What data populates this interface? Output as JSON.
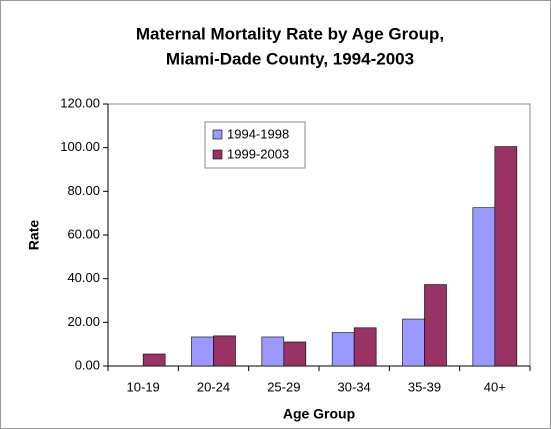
{
  "chart_data": {
    "type": "bar",
    "title": "Maternal Mortality Rate by Age Group,",
    "subtitle": "Miami-Dade County, 1994-2003",
    "x_label": "Age Group",
    "y_label": "Rate",
    "categories": [
      "10-19",
      "20-24",
      "25-29",
      "30-34",
      "35-39",
      "40+"
    ],
    "series": [
      {
        "name": "1994-1998",
        "color": "#9999ff",
        "values": [
          null,
          13.3,
          13.3,
          15.3,
          21.5,
          72.5
        ]
      },
      {
        "name": "1999-2003",
        "color": "#993366",
        "values": [
          5.5,
          13.8,
          11.0,
          17.5,
          37.3,
          100.5
        ]
      }
    ],
    "ylim": [
      0,
      120
    ],
    "yticks": [
      {
        "value": 0,
        "label": "0.00"
      },
      {
        "value": 20,
        "label": "20.00"
      },
      {
        "value": 40,
        "label": "40.00"
      },
      {
        "value": 60,
        "label": "60.00"
      },
      {
        "value": 80,
        "label": "80.00"
      },
      {
        "value": 100,
        "label": "100.00"
      },
      {
        "value": 120,
        "label": "120.00"
      }
    ],
    "legend": "upper-left"
  }
}
